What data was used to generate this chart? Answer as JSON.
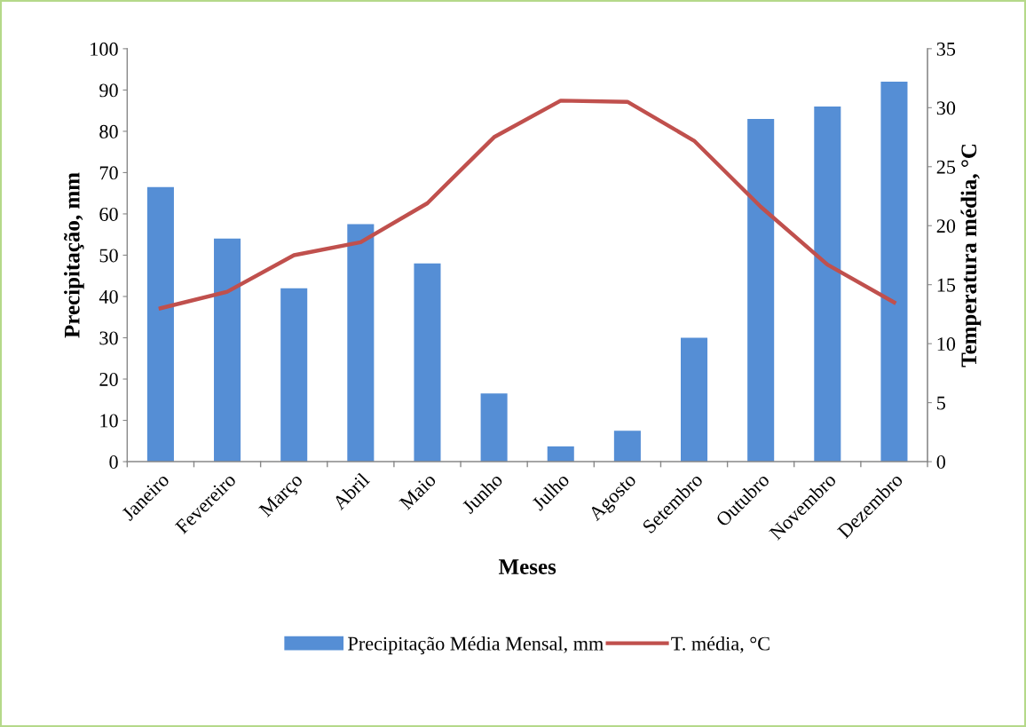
{
  "chart_data": {
    "type": "bar",
    "xlabel": "Meses",
    "ylabel": "Precipitação, mm",
    "y2label": "Temperatura média, °C",
    "categories": [
      "Janeiro",
      "Fevereiro",
      "Março",
      "Abril",
      "Maio",
      "Junho",
      "Julho",
      "Agosto",
      "Setembro",
      "Outubro",
      "Novembro",
      "Dezembro"
    ],
    "series": [
      {
        "name": "Precipitação Média Mensal, mm",
        "color": "#558ed5",
        "values": [
          66.5,
          54,
          42,
          57.5,
          48,
          16.5,
          3.7,
          7.5,
          30,
          83,
          86,
          92
        ]
      },
      {
        "name": "T. média, °C",
        "type": "line",
        "axis": "y2",
        "color": "#c0504d",
        "values": [
          13.0,
          14.4,
          17.5,
          18.6,
          21.9,
          27.5,
          30.6,
          30.5,
          27.2,
          21.6,
          16.7,
          13.5
        ]
      }
    ],
    "ylim": [
      0,
      100
    ],
    "yticks": [
      0,
      10,
      20,
      30,
      40,
      50,
      60,
      70,
      80,
      90,
      100
    ],
    "y2lim": [
      0,
      35
    ],
    "y2ticks": [
      0,
      5,
      10,
      15,
      20,
      25,
      30,
      35
    ],
    "grid": false,
    "legend": "bottom",
    "marker": "none",
    "line_style": "solid"
  }
}
